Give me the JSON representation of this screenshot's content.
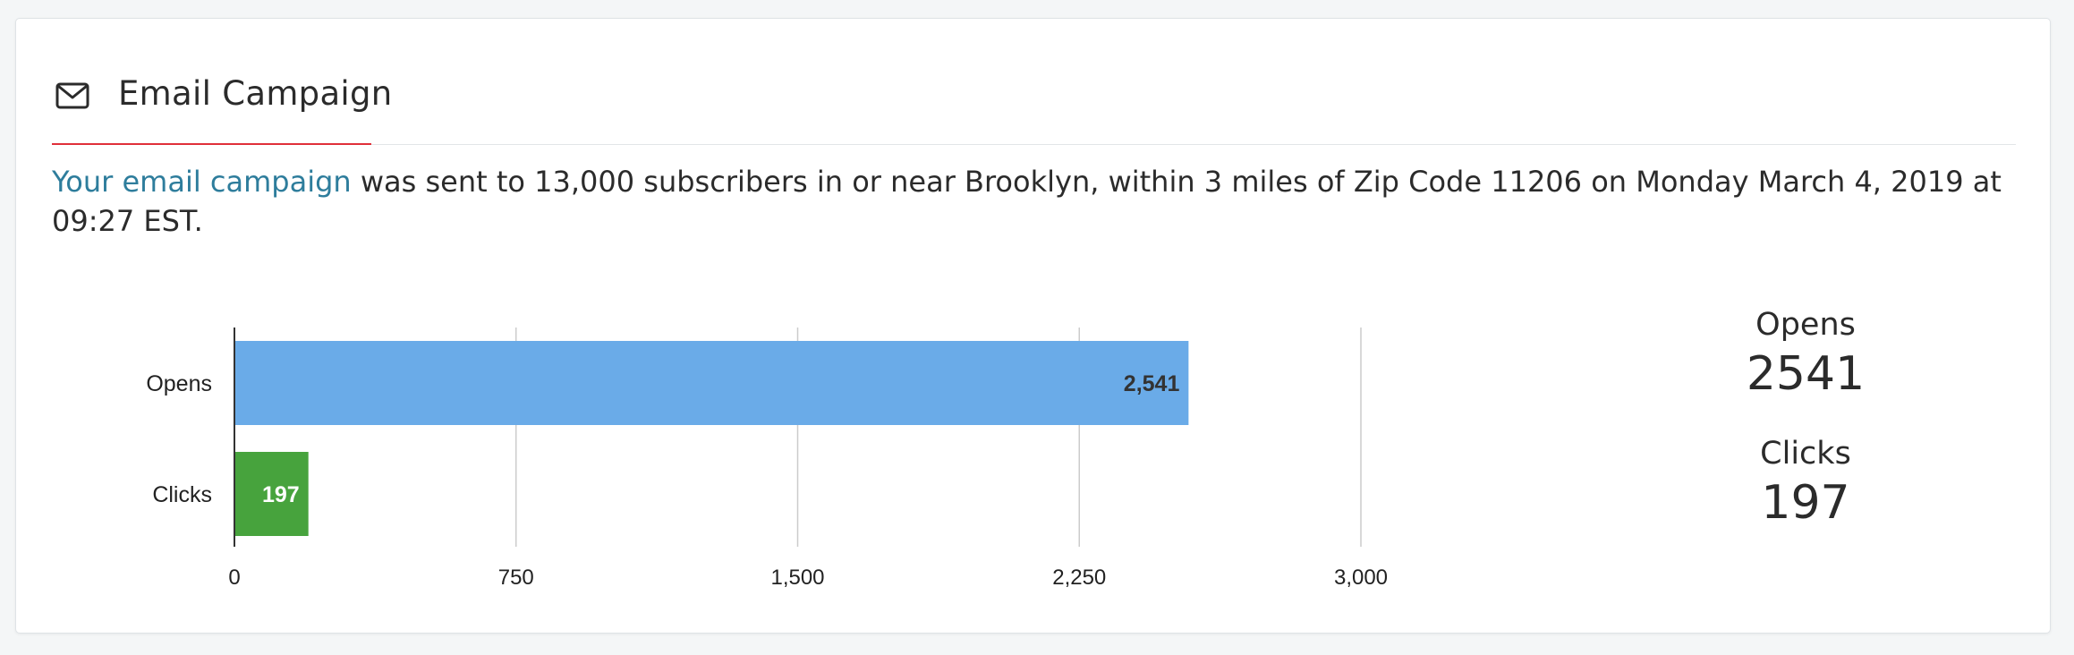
{
  "header": {
    "icon": "envelope-icon",
    "title": "Email Campaign"
  },
  "summary": {
    "link_text": "Your email campaign",
    "text": " was sent to 13,000 subscribers in or near Brooklyn, within 3 miles of Zip Code 11206 on Monday March 4, 2019 at 09:27 EST."
  },
  "colors": {
    "accent_red": "#e0303a",
    "link": "#2e7d9c",
    "opens_bar": "#6aabe8",
    "clicks_bar": "#47a33d"
  },
  "chart_data": {
    "type": "bar",
    "orientation": "horizontal",
    "categories": [
      "Opens",
      "Clicks"
    ],
    "values": [
      2541,
      197
    ],
    "value_labels": [
      "2,541",
      "197"
    ],
    "xlim": [
      0,
      3000
    ],
    "xticks": [
      0,
      750,
      1500,
      2250,
      3000
    ],
    "xtick_labels": [
      "0",
      "750",
      "1,500",
      "2,250",
      "3,000"
    ],
    "grid": true,
    "colors": [
      "#6aabe8",
      "#47a33d"
    ],
    "title": "",
    "xlabel": "",
    "ylabel": ""
  },
  "stats": [
    {
      "label": "Opens",
      "value": "2541"
    },
    {
      "label": "Clicks",
      "value": "197"
    }
  ]
}
